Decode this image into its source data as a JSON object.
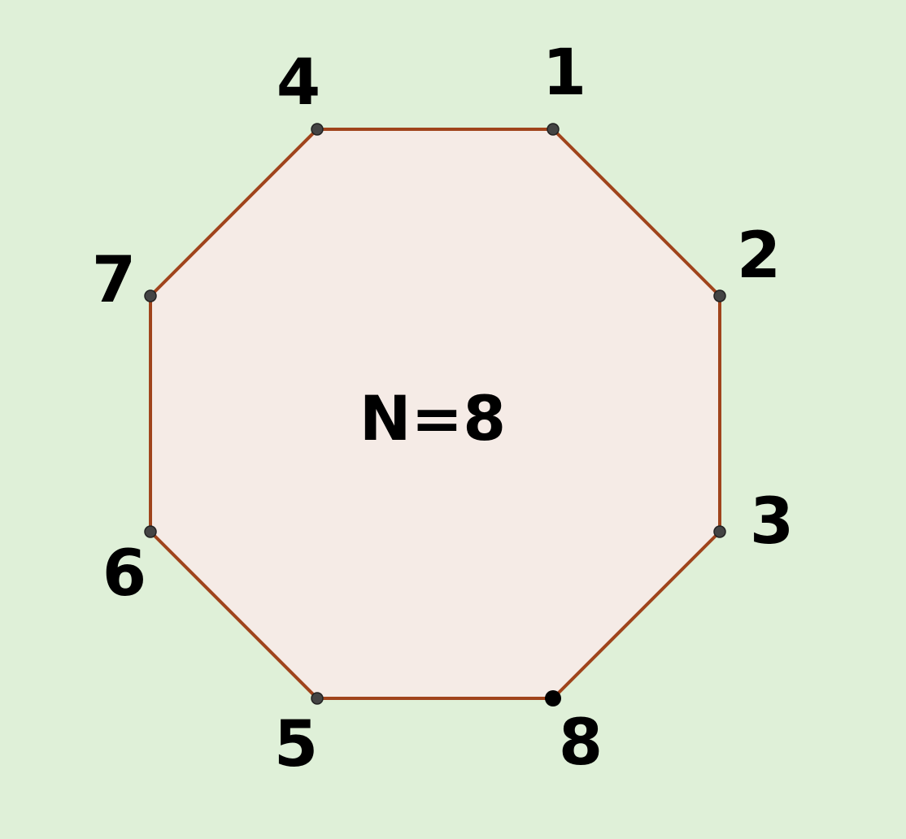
{
  "background_color": "#dff0d8",
  "polygon": {
    "fill_color": "#f5ebe6",
    "edge_color": "#a0441c",
    "vertex_color": "#444444",
    "highlight_vertex_color": "#000000",
    "center_label": "N=8"
  },
  "vertices": [
    {
      "label": "1"
    },
    {
      "label": "2"
    },
    {
      "label": "3"
    },
    {
      "label": "8"
    },
    {
      "label": "5"
    },
    {
      "label": "6"
    },
    {
      "label": "7"
    },
    {
      "label": "4"
    }
  ]
}
